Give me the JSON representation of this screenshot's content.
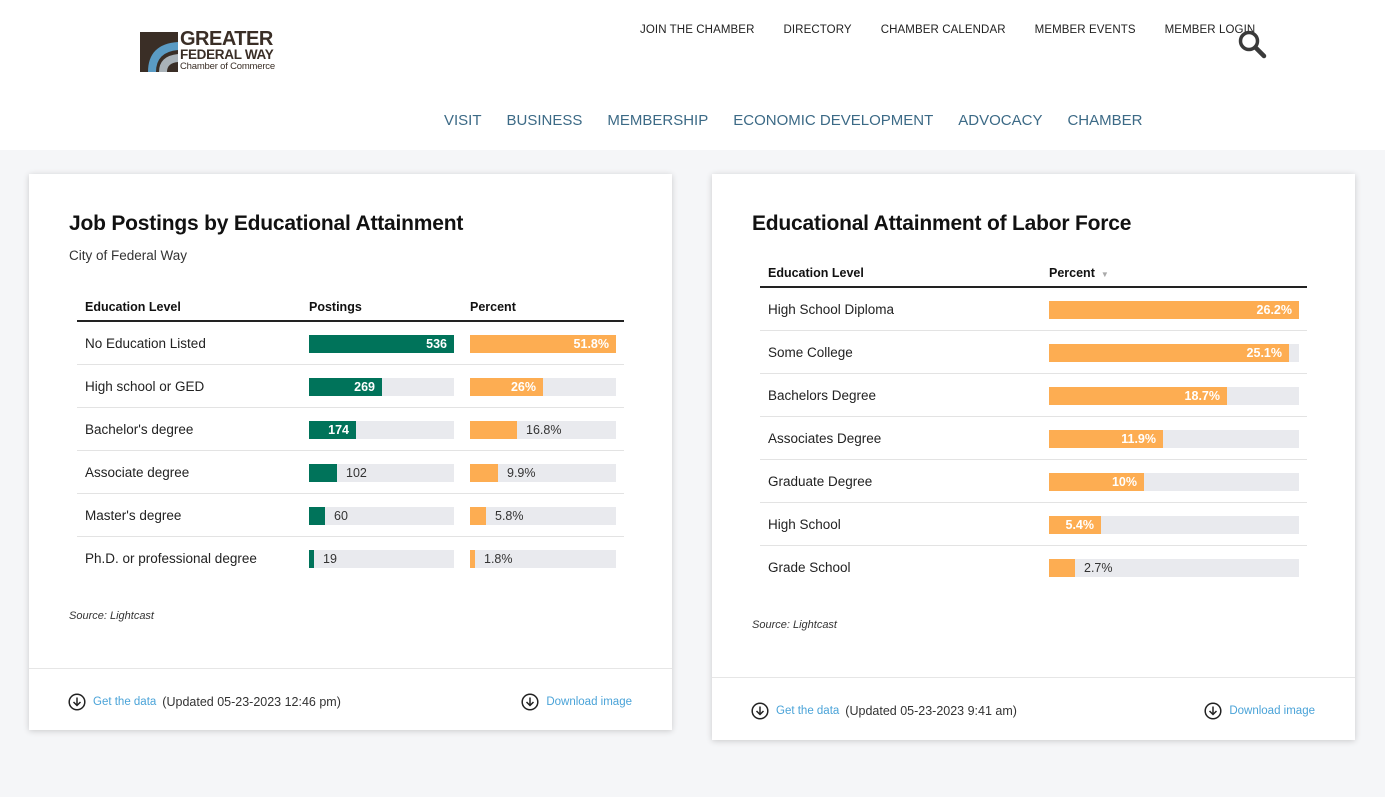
{
  "logo": {
    "line1": "GREATER",
    "line2": "FEDERAL WAY",
    "line3": "Chamber of Commerce"
  },
  "topnav": [
    "JOIN THE CHAMBER",
    "DIRECTORY",
    "CHAMBER CALENDAR",
    "MEMBER EVENTS",
    "MEMBER LOGIN"
  ],
  "mainnav": [
    "VISIT",
    "BUSINESS",
    "MEMBERSHIP",
    "ECONOMIC DEVELOPMENT",
    "ADVOCACY",
    "CHAMBER"
  ],
  "colors": {
    "green": "#00735a",
    "orange": "#fdad52",
    "nav": "#3c6a86",
    "link": "#4aa3d8"
  },
  "cards": [
    {
      "title": "Job Postings by Educational Attainment",
      "subtitle": "City of Federal Way",
      "columns": [
        "Education Level",
        "Postings",
        "Percent"
      ],
      "source": "Source: Lightcast",
      "get_data": "Get the data",
      "updated": "(Updated 05-23-2023 12:46 pm)",
      "download": "Download image"
    },
    {
      "title": "Educational Attainment of Labor Force",
      "columns": [
        "Education Level",
        "Percent"
      ],
      "sort_indicator": "▼",
      "source": "Source: Lightcast",
      "get_data": "Get the data",
      "updated": "(Updated 05-23-2023 9:41 am)",
      "download": "Download image"
    }
  ],
  "chart_data": [
    {
      "type": "table",
      "title": "Job Postings by Educational Attainment",
      "subtitle": "City of Federal Way",
      "columns": [
        "Education Level",
        "Postings",
        "Percent"
      ],
      "rows": [
        {
          "label": "No Education Listed",
          "postings": 536,
          "postings_label": "536",
          "percent": 51.8,
          "percent_label": "51.8%"
        },
        {
          "label": "High school or GED",
          "postings": 269,
          "postings_label": "269",
          "percent": 26,
          "percent_label": "26%"
        },
        {
          "label": "Bachelor's degree",
          "postings": 174,
          "postings_label": "174",
          "percent": 16.8,
          "percent_label": "16.8%"
        },
        {
          "label": "Associate degree",
          "postings": 102,
          "postings_label": "102",
          "percent": 9.9,
          "percent_label": "9.9%"
        },
        {
          "label": "Master's degree",
          "postings": 60,
          "postings_label": "60",
          "percent": 5.8,
          "percent_label": "5.8%"
        },
        {
          "label": "Ph.D. or professional degree",
          "postings": 19,
          "postings_label": "19",
          "percent": 1.8,
          "percent_label": "1.8%"
        }
      ],
      "postings_max": 536,
      "percent_max": 51.8
    },
    {
      "type": "table",
      "title": "Educational Attainment of Labor Force",
      "columns": [
        "Education Level",
        "Percent"
      ],
      "rows": [
        {
          "label": "High School Diploma",
          "percent": 26.2,
          "percent_label": "26.2%"
        },
        {
          "label": "Some College",
          "percent": 25.1,
          "percent_label": "25.1%"
        },
        {
          "label": "Bachelors Degree",
          "percent": 18.7,
          "percent_label": "18.7%"
        },
        {
          "label": "Associates Degree",
          "percent": 11.9,
          "percent_label": "11.9%"
        },
        {
          "label": "Graduate Degree",
          "percent": 10,
          "percent_label": "10%"
        },
        {
          "label": "High School",
          "percent": 5.4,
          "percent_label": "5.4%"
        },
        {
          "label": "Grade School",
          "percent": 2.7,
          "percent_label": "2.7%"
        }
      ],
      "percent_max": 26.2
    }
  ]
}
